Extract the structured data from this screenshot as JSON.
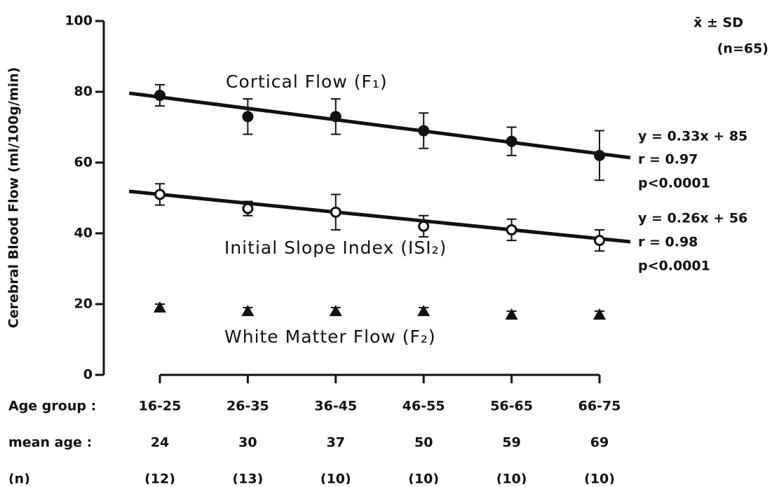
{
  "chart_data": {
    "type": "errorbar",
    "y_label": "Cerebral Blood Flow (ml/100g/min)",
    "ylim": [
      0,
      100
    ],
    "yticks": [
      0,
      20,
      40,
      60,
      80,
      100
    ],
    "row_labels": [
      "Age group :",
      "mean age  :",
      "(n)"
    ],
    "categories": [
      "16-25",
      "26-35",
      "36-45",
      "46-55",
      "56-65",
      "66-75"
    ],
    "mean_age": [
      24,
      30,
      37,
      50,
      59,
      69
    ],
    "n": [
      12,
      13,
      10,
      10,
      10,
      10
    ],
    "n_labels": [
      "(12)",
      "(13)",
      "(10)",
      "(10)",
      "(10)",
      "(10)"
    ],
    "series": [
      {
        "name": "Cortical Flow (F₁)",
        "color": "#111111",
        "marker": "filled-circle",
        "values": [
          79,
          73,
          73,
          69,
          66,
          62
        ],
        "errors": [
          3,
          5,
          5,
          5,
          4,
          7
        ],
        "trend": [
          78.5,
          62.5
        ]
      },
      {
        "name": "Initial Slope Index (ISI₂)",
        "color": "#111111",
        "marker": "open-circle",
        "values": [
          51,
          47,
          46,
          42,
          41,
          38
        ],
        "errors": [
          3,
          2,
          5,
          3,
          3,
          3
        ],
        "trend": [
          51,
          38.5
        ]
      },
      {
        "name": "White Matter Flow (F₂)",
        "color": "#111111",
        "marker": "triangle",
        "values": [
          19,
          18,
          18,
          18,
          17,
          17
        ],
        "errors": [
          1,
          1,
          1,
          1,
          1,
          1
        ]
      }
    ],
    "annotations": [
      "x̄ ± SD",
      "(n=65)",
      "y = 0.33x + 85",
      "r = 0.97",
      "p<0.0001",
      "y = 0.26x + 56",
      "r = 0.98",
      "p<0.0001"
    ]
  }
}
